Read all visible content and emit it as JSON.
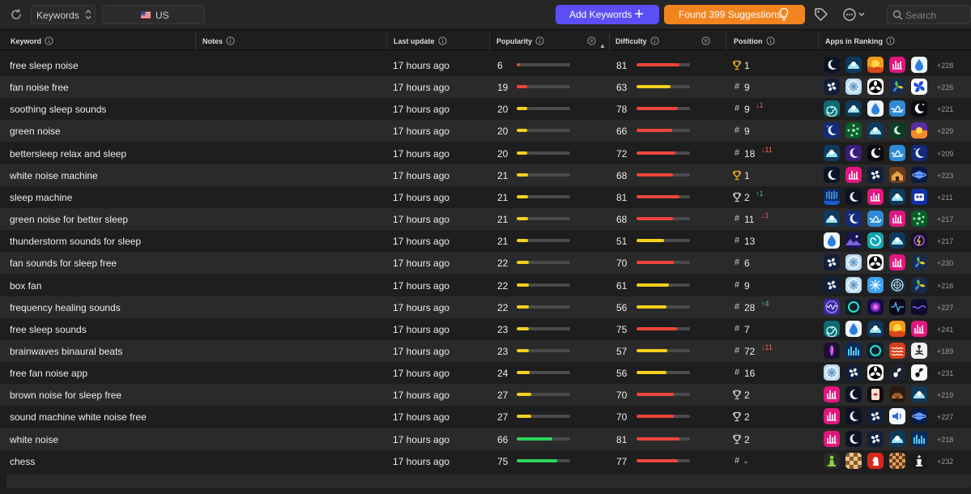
{
  "toolbar": {
    "mode": {
      "value": "Keywords"
    },
    "country": {
      "flag_icon": "us-flag-icon",
      "value": "US"
    },
    "add_keywords_label": "Add Keywords",
    "found_suggestions_label": "Found 399 Suggestions",
    "search_placeholder": "Search",
    "icons": [
      "refresh-icon",
      "tag-icon",
      "more-icon",
      "search-icon",
      "lightbulb-icon",
      "plus-icon"
    ]
  },
  "columns": {
    "keyword": "Keyword",
    "notes": "Notes",
    "last_update": "Last update",
    "popularity": "Popularity",
    "difficulty": "Difficulty",
    "position": "Position",
    "apps_in_ranking": "Apps in Ranking"
  },
  "colors": {
    "add_button": "#5b4ef5",
    "found_button": "#f2841f",
    "bar_red": "#f0453a",
    "bar_yellow": "#f5cf1e",
    "bar_green": "#2fd45c",
    "change_down": "#ff5a4f",
    "change_up": "#3ad35a"
  },
  "rows": [
    {
      "keyword": "free sleep noise",
      "last_update": "17 hours ago",
      "popularity": 6,
      "difficulty": 81,
      "position_icon": "trophy-gold",
      "position": "1",
      "change": "",
      "apps_count": "+228",
      "apps": [
        "sleep-moon",
        "sleepcast",
        "sunset-waves",
        "white-noise-pink",
        "bettersleep-drop"
      ]
    },
    {
      "keyword": "fan noise free",
      "last_update": "17 hours ago",
      "popularity": 19,
      "difficulty": 63,
      "position_icon": "hash",
      "position": "9",
      "change": "",
      "apps_count": "+226",
      "apps": [
        "fan-dark",
        "snowflake-fan",
        "fan-bw",
        "leaf-fan",
        "fan-blue"
      ]
    },
    {
      "keyword": "soothing sleep sounds",
      "last_update": "17 hours ago",
      "popularity": 20,
      "difficulty": 78,
      "position_icon": "hash",
      "position": "9",
      "change": "-1",
      "apps_count": "+221",
      "apps": [
        "spiral-teal",
        "sleepcast",
        "bettersleep-drop",
        "wave-blue",
        "moon-star-dark"
      ]
    },
    {
      "keyword": "green noise",
      "last_update": "17 hours ago",
      "popularity": 20,
      "difficulty": 66,
      "position_icon": "hash",
      "position": "9",
      "change": "",
      "apps_count": "+229",
      "apps": [
        "moon-navy",
        "green-dots",
        "sleepcast",
        "moon-green",
        "sunset-purple"
      ]
    },
    {
      "keyword": "bettersleep relax and sleep",
      "last_update": "17 hours ago",
      "popularity": 20,
      "difficulty": 72,
      "position_icon": "hash",
      "position": "18",
      "change": "-11",
      "apps_count": "+209",
      "apps": [
        "sleepcast",
        "moon-purple",
        "moon-star-dark",
        "wave-blue",
        "moon-navy"
      ]
    },
    {
      "keyword": "white noise machine",
      "last_update": "17 hours ago",
      "popularity": 21,
      "difficulty": 68,
      "position_icon": "trophy-gold",
      "position": "1",
      "change": "",
      "apps_count": "+223",
      "apps": [
        "sleep-moon",
        "white-noise-pink",
        "fan-dark",
        "cabin-brown",
        "planet-blue"
      ]
    },
    {
      "keyword": "sleep machine",
      "last_update": "17 hours ago",
      "popularity": 21,
      "difficulty": 81,
      "position_icon": "trophy-silver",
      "position": "2",
      "change": "+1",
      "apps_count": "+211",
      "apps": [
        "rain-blue",
        "sleep-moon",
        "white-noise-pink",
        "sleepcast",
        "robot-blue"
      ]
    },
    {
      "keyword": "green noise for better sleep",
      "last_update": "17 hours ago",
      "popularity": 21,
      "difficulty": 68,
      "position_icon": "hash",
      "position": "11",
      "change": "-1",
      "apps_count": "+217",
      "apps": [
        "sleepcast",
        "moon-navy",
        "wave-blue",
        "white-noise-pink",
        "green-dots"
      ]
    },
    {
      "keyword": "thunderstorm sounds for sleep",
      "last_update": "17 hours ago",
      "popularity": 21,
      "difficulty": 51,
      "position_icon": "hash",
      "position": "13",
      "change": "",
      "apps_count": "+217",
      "apps": [
        "bettersleep-drop",
        "mountain-night",
        "swirl-teal",
        "sleepcast",
        "storm-dark"
      ]
    },
    {
      "keyword": "fan sounds for sleep free",
      "last_update": "17 hours ago",
      "popularity": 22,
      "difficulty": 70,
      "position_icon": "hash",
      "position": "6",
      "change": "",
      "apps_count": "+230",
      "apps": [
        "fan-dark",
        "snowflake-fan",
        "fan-bw",
        "white-noise-pink",
        "leaf-fan"
      ]
    },
    {
      "keyword": "box fan",
      "last_update": "17 hours ago",
      "popularity": 22,
      "difficulty": 61,
      "position_icon": "hash",
      "position": "9",
      "change": "",
      "apps_count": "+216",
      "apps": [
        "fan-dark",
        "snowflake-fan",
        "snowflake-blue",
        "fan-ring",
        "leaf-fan"
      ]
    },
    {
      "keyword": "frequency healing sounds",
      "last_update": "17 hours ago",
      "popularity": 22,
      "difficulty": 56,
      "position_icon": "hash",
      "position": "28",
      "change": "+4",
      "apps_count": "+227",
      "apps": [
        "wave-purple",
        "ring-teal",
        "aura-purple",
        "pulse-dark",
        "wave-neon"
      ]
    },
    {
      "keyword": "free sleep sounds",
      "last_update": "17 hours ago",
      "popularity": 23,
      "difficulty": 75,
      "position_icon": "hash",
      "position": "7",
      "change": "",
      "apps_count": "+241",
      "apps": [
        "spiral-teal",
        "bettersleep-drop",
        "sleepcast",
        "sunset-waves",
        "white-noise-pink"
      ]
    },
    {
      "keyword": "brainwaves binaural beats",
      "last_update": "17 hours ago",
      "popularity": 23,
      "difficulty": 57,
      "position_icon": "hash",
      "position": "72",
      "change": "-11",
      "apps_count": "+189",
      "apps": [
        "figure-purple",
        "equalizer-blue",
        "ring-teal",
        "wave-orange",
        "meditation-light"
      ]
    },
    {
      "keyword": "free fan noise app",
      "last_update": "17 hours ago",
      "popularity": 24,
      "difficulty": 56,
      "position_icon": "hash",
      "position": "16",
      "change": "",
      "apps_count": "+231",
      "apps": [
        "snowflake-fan",
        "fan-dark",
        "fan-bw",
        "fan-white-dark",
        "fan-white"
      ]
    },
    {
      "keyword": "brown noise for sleep free",
      "last_update": "17 hours ago",
      "popularity": 27,
      "difficulty": 70,
      "position_icon": "trophy-silver",
      "position": "2",
      "change": "",
      "apps_count": "+219",
      "apps": [
        "white-noise-pink",
        "sleep-moon",
        "lips-dark",
        "shell-brown",
        "sleepcast"
      ]
    },
    {
      "keyword": "sound machine white noise free",
      "last_update": "17 hours ago",
      "popularity": 27,
      "difficulty": 70,
      "position_icon": "trophy-silver",
      "position": "2",
      "change": "",
      "apps_count": "+227",
      "apps": [
        "white-noise-pink",
        "sleep-moon",
        "fan-dark",
        "speaker-blue",
        "planet-blue"
      ]
    },
    {
      "keyword": "white noise",
      "last_update": "17 hours ago",
      "popularity": 66,
      "difficulty": 81,
      "position_icon": "trophy-silver",
      "position": "2",
      "change": "",
      "apps_count": "+218",
      "apps": [
        "white-noise-pink",
        "sleep-moon",
        "fan-dark",
        "sleepcast",
        "equalizer-blue"
      ]
    },
    {
      "keyword": "chess",
      "last_update": "17 hours ago",
      "popularity": 75,
      "difficulty": 77,
      "position_icon": "hash",
      "position": "-",
      "change": "",
      "apps_count": "+232",
      "apps": [
        "pawn-green",
        "board-wood",
        "knight-red",
        "board-brown",
        "king-dark"
      ]
    }
  ]
}
